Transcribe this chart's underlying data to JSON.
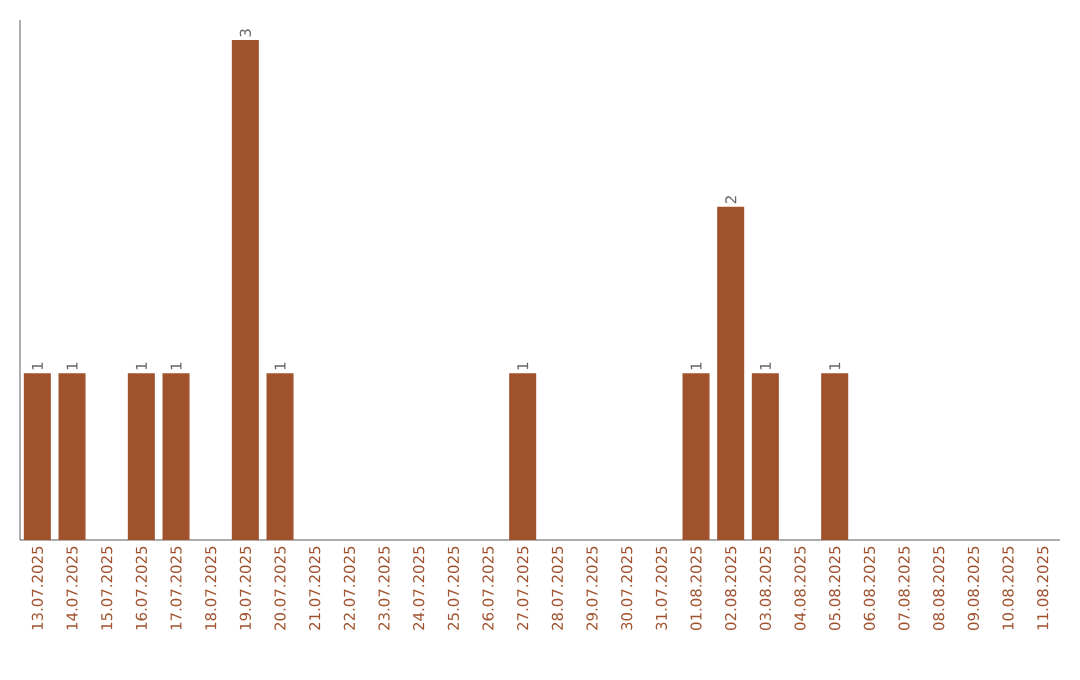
{
  "chart_data": {
    "type": "bar",
    "categories": [
      "13.07.2025",
      "14.07.2025",
      "15.07.2025",
      "16.07.2025",
      "17.07.2025",
      "18.07.2025",
      "19.07.2025",
      "20.07.2025",
      "21.07.2025",
      "22.07.2025",
      "23.07.2025",
      "24.07.2025",
      "25.07.2025",
      "26.07.2025",
      "27.07.2025",
      "28.07.2025",
      "29.07.2025",
      "30.07.2025",
      "31.07.2025",
      "01.08.2025",
      "02.08.2025",
      "03.08.2025",
      "04.08.2025",
      "05.08.2025",
      "06.08.2025",
      "07.08.2025",
      "08.08.2025",
      "09.08.2025",
      "10.08.2025",
      "11.08.2025"
    ],
    "values": [
      1,
      1,
      0,
      1,
      1,
      0,
      3,
      1,
      0,
      0,
      0,
      0,
      0,
      0,
      1,
      0,
      0,
      0,
      0,
      1,
      2,
      1,
      0,
      1,
      0,
      0,
      0,
      0,
      0,
      0
    ],
    "value_labels": [
      "1",
      "1",
      null,
      "1",
      "1",
      null,
      "3",
      "1",
      null,
      null,
      null,
      null,
      null,
      null,
      "1",
      null,
      null,
      null,
      null,
      "1",
      "2",
      "1",
      null,
      "1",
      null,
      null,
      null,
      null,
      null,
      null
    ],
    "color": "#a0522d"
  }
}
